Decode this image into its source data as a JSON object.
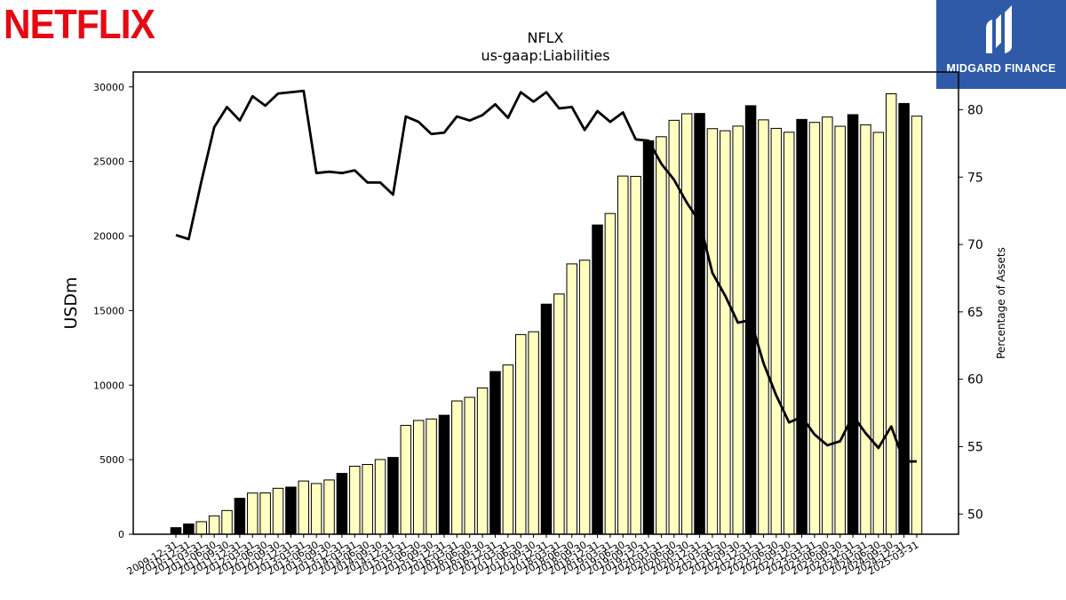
{
  "branding": {
    "left_logo_text": "NETFLIX",
    "right_logo_text": "MIDGARD FINANCE",
    "left_logo_color": "#e50914",
    "right_logo_bg": "#2e5aa8"
  },
  "chart_data": {
    "type": "bar",
    "title": "NFLX",
    "subtitle": "us-gaap:Liabilities",
    "ylabel": "USDm",
    "y2label": "Percentage of Assets",
    "ylim": [
      0,
      31000
    ],
    "y2lim": [
      48.5,
      82.8
    ],
    "yticks": [
      0,
      5000,
      10000,
      15000,
      20000,
      25000,
      30000
    ],
    "y2ticks": [
      50,
      55,
      60,
      65,
      70,
      75,
      80
    ],
    "colors": {
      "annual_bar": "#000000",
      "quarter_bar": "#ffffc0",
      "line": "#000000"
    },
    "categories": [
      "2009-12-31",
      "2010-12-31",
      "2011-03-31",
      "2011-06-30",
      "2011-09-30",
      "2011-12-31",
      "2012-03-31",
      "2012-06-30",
      "2012-09-30",
      "2012-12-31",
      "2013-03-31",
      "2013-06-30",
      "2013-09-30",
      "2013-12-31",
      "2014-03-31",
      "2014-06-30",
      "2014-09-30",
      "2014-12-31",
      "2015-03-31",
      "2015-06-30",
      "2015-09-30",
      "2015-12-31",
      "2016-03-31",
      "2016-06-30",
      "2016-09-30",
      "2016-12-31",
      "2017-03-31",
      "2017-06-30",
      "2017-09-30",
      "2017-12-31",
      "2018-03-31",
      "2018-06-30",
      "2018-09-30",
      "2018-12-31",
      "2019-03-31",
      "2019-06-30",
      "2019-09-30",
      "2019-12-31",
      "2020-03-31",
      "2020-06-30",
      "2020-09-30",
      "2020-12-31",
      "2021-03-31",
      "2021-06-30",
      "2021-09-30",
      "2021-12-31",
      "2022-03-31",
      "2022-06-30",
      "2022-09-30",
      "2022-12-31",
      "2023-03-31",
      "2023-06-30",
      "2023-09-30",
      "2023-12-31",
      "2024-03-31",
      "2024-06-30",
      "2024-09-30",
      "2024-12-31",
      "2025-03-31"
    ],
    "annual": [
      true,
      true,
      false,
      false,
      false,
      true,
      false,
      false,
      false,
      true,
      false,
      false,
      false,
      true,
      false,
      false,
      false,
      true,
      false,
      false,
      false,
      true,
      false,
      false,
      false,
      true,
      false,
      false,
      false,
      true,
      false,
      false,
      false,
      true,
      false,
      false,
      false,
      true,
      false,
      false,
      false,
      true,
      false,
      false,
      false,
      true,
      false,
      false,
      false,
      true,
      false,
      false,
      false,
      true,
      false,
      false,
      false,
      true,
      false
    ],
    "series": [
      {
        "name": "Liabilities",
        "axis": "left",
        "values": [
          440,
          690,
          840,
          1230,
          1590,
          2410,
          2760,
          2770,
          3080,
          3160,
          3570,
          3400,
          3640,
          4080,
          4560,
          4680,
          5010,
          5150,
          7300,
          7630,
          7730,
          7980,
          8940,
          9180,
          9810,
          10910,
          11350,
          13390,
          13580,
          15430,
          16110,
          18130,
          18380,
          20740,
          21510,
          24020,
          24000,
          26390,
          26660,
          27760,
          28200,
          28220,
          27200,
          27060,
          27370,
          28740,
          27790,
          27220,
          26960,
          27820,
          27620,
          27980,
          27360,
          28140,
          27460,
          26950,
          29540,
          28890,
          28040
        ]
      },
      {
        "name": "Percentage of Assets",
        "axis": "right",
        "values": [
          70.7,
          70.4,
          74.7,
          78.7,
          80.2,
          79.2,
          81.0,
          80.3,
          81.2,
          81.3,
          81.4,
          75.3,
          75.4,
          75.3,
          75.5,
          74.6,
          74.6,
          73.7,
          79.5,
          79.1,
          78.2,
          78.3,
          79.5,
          79.2,
          79.6,
          80.4,
          79.4,
          81.3,
          80.6,
          81.3,
          80.1,
          80.2,
          78.5,
          79.9,
          79.1,
          79.8,
          77.8,
          77.7,
          76.0,
          74.8,
          73.1,
          71.7,
          67.9,
          66.2,
          64.2,
          64.4,
          61.2,
          58.8,
          56.8,
          57.2,
          55.9,
          55.1,
          55.4,
          57.3,
          56.0,
          54.9,
          56.5,
          53.9,
          53.9
        ]
      }
    ]
  }
}
